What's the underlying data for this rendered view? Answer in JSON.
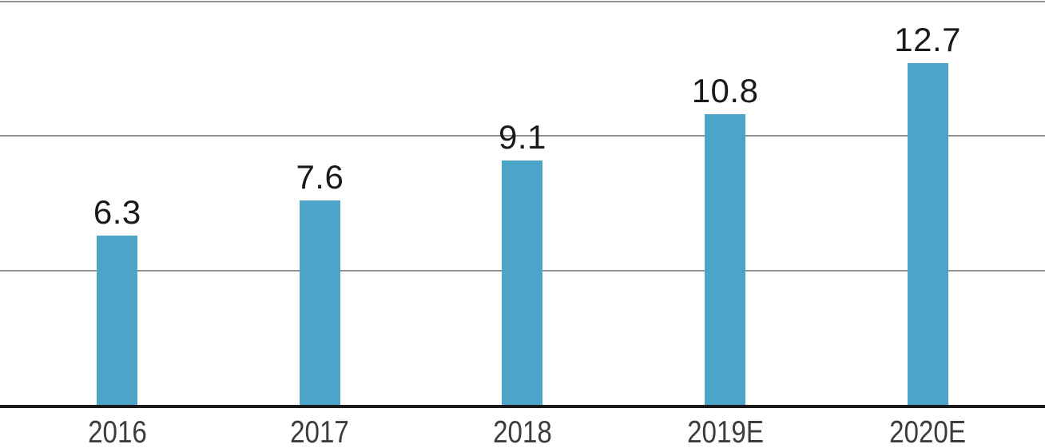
{
  "chart_data": {
    "type": "bar",
    "title": "",
    "xlabel": "",
    "ylabel": "",
    "categories": [
      "2016",
      "2017",
      "2018",
      "2019E",
      "2020E"
    ],
    "values": [
      6.3,
      7.6,
      9.1,
      10.8,
      12.7
    ],
    "data_labels": [
      "6.3",
      "7.6",
      "9.1",
      "10.8",
      "12.7"
    ],
    "ylim": [
      0,
      15
    ],
    "gridlines": [
      5,
      10,
      15
    ],
    "grid": true,
    "legend": false,
    "colors": {
      "bar": "#4CA5C9",
      "gridline": "#929292",
      "axis_line": "#1A1A1A",
      "value_label": "#1A1A1A",
      "tick_label": "#3C3C3C"
    }
  }
}
